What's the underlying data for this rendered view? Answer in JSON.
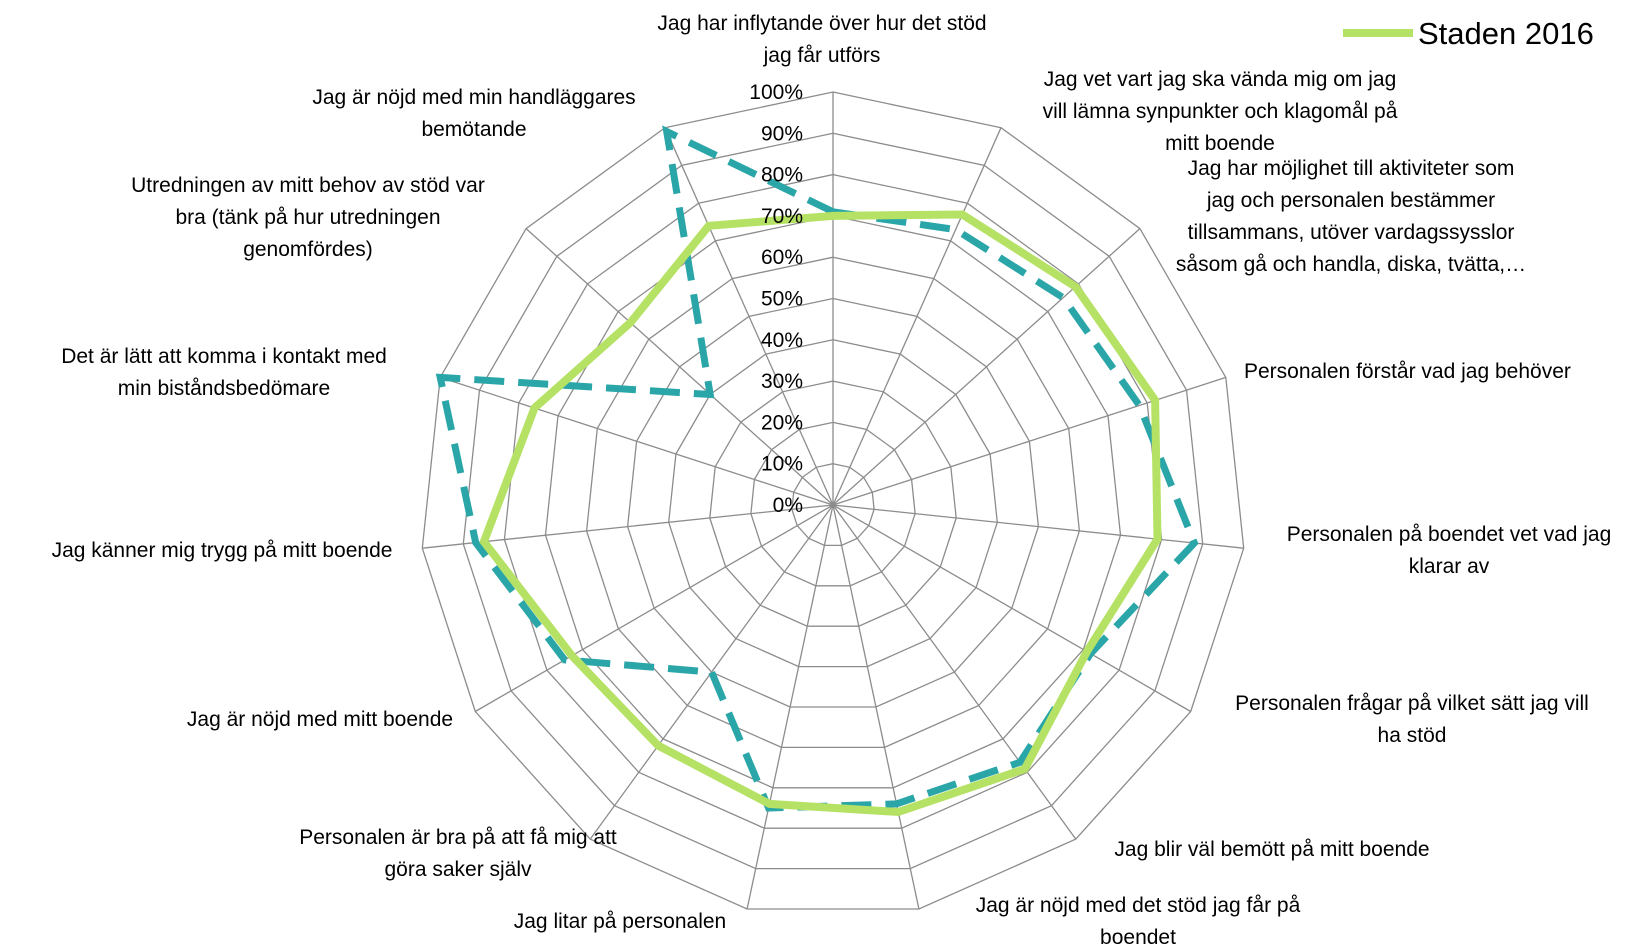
{
  "chart_data": {
    "type": "radar",
    "title": "",
    "rlim": [
      0,
      100
    ],
    "ticks": [
      "0%",
      "10%",
      "20%",
      "30%",
      "40%",
      "50%",
      "60%",
      "70%",
      "80%",
      "90%",
      "100%"
    ],
    "categories": [
      "Jag har inflytande över hur det stöd jag får utförs",
      "Jag vet vart jag ska vända mig om jag vill lämna synpunkter och klagomål på mitt boende",
      "Jag har möjlighet till aktiviteter som jag och personalen bestämmer tillsammans, utöver vardagssysslor såsom gå och handla, diska, tvätta,…",
      "Personalen förstår vad jag behöver",
      "Personalen på boendet vet vad jag klarar av",
      "Personalen frågar på vilket sätt jag vill ha stöd",
      "Jag blir väl bemött på mitt boende",
      "Jag är nöjd med det stöd jag får på boendet",
      "Jag litar på personalen",
      "Personalen är bra på att få mig att göra saker själv",
      "Jag är nöjd med mitt boende",
      "Jag känner mig trygg på mitt boende",
      "Det är lätt att komma i kontakt med min biståndsbedömare",
      "Utredningen av mitt behov av stöd var bra (tänk på hur utredningen genomfördes)",
      "Jag är nöjd med min handläggares bemötande"
    ],
    "category_lines": [
      [
        "Jag har inflytande över hur det stöd",
        "jag får utförs"
      ],
      [
        "Jag vet vart jag ska vända mig om jag",
        "vill lämna synpunkter och klagomål på",
        "mitt boende"
      ],
      [
        "Jag har möjlighet till aktiviteter som",
        "jag och personalen bestämmer",
        "tillsammans, utöver vardagssysslor",
        "såsom gå och handla, diska, tvätta,…"
      ],
      [
        "Personalen förstår vad jag behöver"
      ],
      [
        "Personalen på boendet vet vad jag",
        "klarar av"
      ],
      [
        "Personalen frågar på vilket sätt jag vill",
        "ha stöd"
      ],
      [
        "Jag blir väl bemött på mitt boende"
      ],
      [
        "Jag är nöjd med det stöd jag får på",
        "boendet"
      ],
      [
        "Jag litar på personalen"
      ],
      [
        "Personalen är bra på att få mig att",
        "göra saker själv"
      ],
      [
        "Jag är nöjd med mitt boende"
      ],
      [
        "Jag känner mig trygg på mitt boende"
      ],
      [
        "Det är lätt att komma i kontakt med",
        "min biståndsbedömare"
      ],
      [
        "Utredningen av mitt behov av stöd var",
        "bra (tänk på hur utredningen",
        "genomfördes)"
      ],
      [
        "Jag är nöjd med min handläggares",
        "bemötande"
      ]
    ],
    "series": [
      {
        "name": "",
        "style": "dashed",
        "color": "#2aa6a8",
        "values": [
          71,
          73,
          75,
          78,
          88,
          72,
          77,
          74,
          75,
          50,
          75,
          87,
          100,
          40,
          99
        ]
      },
      {
        "name": "Staden 2016",
        "style": "solid",
        "color": "#b5e265",
        "values": [
          70,
          77,
          79,
          82,
          79,
          71,
          79,
          76,
          74,
          72,
          73,
          85,
          76,
          66,
          74
        ]
      }
    ],
    "legend": {
      "position": "top-right",
      "label": "Staden 2016"
    },
    "grid": true
  }
}
